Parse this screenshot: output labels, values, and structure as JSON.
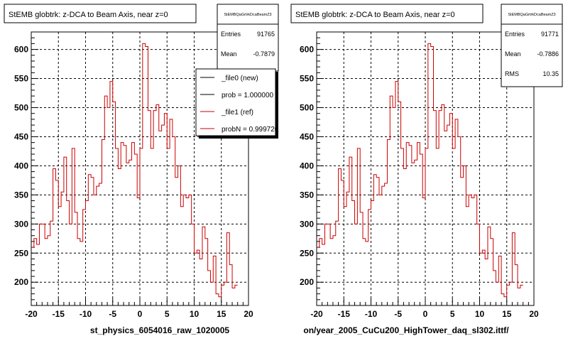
{
  "colors": {
    "new": "#000000",
    "ref": "#cc0000"
  },
  "chart_data": [
    {
      "type": "line",
      "title": "StEMB globtrk: z-DCA to Beam Axis, near z=0",
      "stats_name": "StEMBQaGrtrkDcaBeamZ3",
      "stats": [
        {
          "label": "Entries",
          "value": "91765"
        },
        {
          "label": "Mean",
          "value": "-0.7879"
        }
      ],
      "legend": [
        {
          "label": "_file0 (new)",
          "color": "#000000"
        },
        {
          "label": "prob = 1.000000",
          "color": "#000000"
        },
        {
          "label": "_file1 (ref)",
          "color": "#cc0000"
        },
        {
          "label": "probN = 0.999720",
          "color": "#cc0000"
        }
      ],
      "xlim": [
        -20,
        20
      ],
      "ylim": [
        160,
        630
      ],
      "x_ticks": [
        -20,
        -15,
        -10,
        -5,
        0,
        5,
        10,
        15,
        20
      ],
      "y_ticks": [
        200,
        250,
        300,
        350,
        400,
        450,
        500,
        550,
        600
      ],
      "caption": "st_physics_6054016_raw_1020005",
      "series": [
        {
          "name": "_file1 (ref)",
          "bin_edges_start": -20,
          "bin_width": 0.5,
          "values": [
            260,
            275,
            265,
            300,
            300,
            275,
            280,
            305,
            395,
            375,
            330,
            355,
            415,
            340,
            300,
            430,
            320,
            275,
            270,
            325,
            340,
            385,
            380,
            350,
            365,
            370,
            445,
            520,
            500,
            545,
            510,
            430,
            395,
            440,
            435,
            405,
            410,
            440,
            420,
            345,
            430,
            610,
            605,
            495,
            430,
            495,
            505,
            460,
            470,
            490,
            430,
            480,
            450,
            380,
            400,
            330,
            350,
            345,
            350,
            300,
            250,
            255,
            240,
            295,
            275,
            220,
            200,
            245,
            180,
            175,
            195,
            200,
            285,
            230,
            190,
            195
          ]
        }
      ]
    },
    {
      "type": "line",
      "title": "StEMB globtrk: z-DCA to Beam Axis, near z=0",
      "stats_name": "StEMBQaGrtrkDcaBeamZ3",
      "stats": [
        {
          "label": "Entries",
          "value": "91771"
        },
        {
          "label": "Mean",
          "value": "-0.7886"
        },
        {
          "label": "RMS",
          "value": "10.35"
        }
      ],
      "xlim": [
        -20,
        20
      ],
      "ylim": [
        160,
        630
      ],
      "x_ticks": [
        -20,
        -15,
        -10,
        -5,
        0,
        5,
        10,
        15,
        20
      ],
      "y_ticks": [
        200,
        250,
        300,
        350,
        400,
        450,
        500,
        550,
        600
      ],
      "caption": "on/year_2005_CuCu200_HighTower_daq_sl302.ittf/",
      "series": [
        {
          "name": "_file1 (ref)",
          "bin_edges_start": -20,
          "bin_width": 0.5,
          "values": [
            260,
            275,
            265,
            300,
            300,
            275,
            280,
            305,
            395,
            375,
            330,
            355,
            415,
            340,
            300,
            430,
            320,
            275,
            270,
            325,
            340,
            385,
            380,
            350,
            365,
            370,
            445,
            520,
            500,
            545,
            510,
            430,
            395,
            440,
            435,
            405,
            410,
            440,
            420,
            345,
            430,
            610,
            605,
            495,
            430,
            495,
            505,
            460,
            470,
            490,
            430,
            480,
            450,
            380,
            400,
            330,
            350,
            345,
            350,
            300,
            250,
            255,
            240,
            295,
            275,
            220,
            200,
            245,
            180,
            175,
            195,
            200,
            285,
            230,
            190,
            195
          ]
        }
      ]
    }
  ]
}
